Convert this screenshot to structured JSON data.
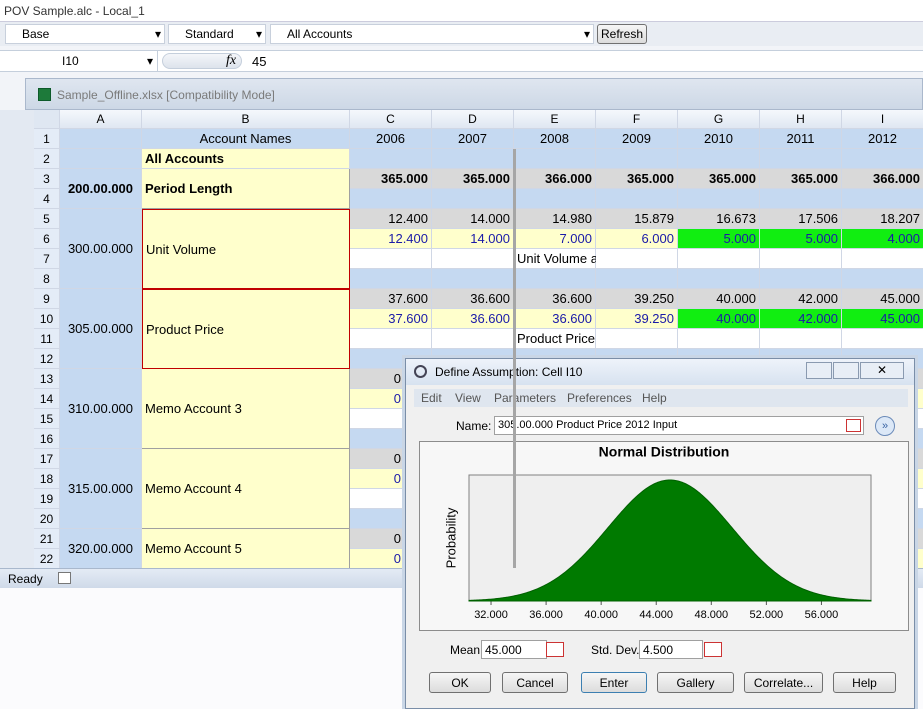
{
  "window_title": "POV Sample.alc - Local_1",
  "pov": {
    "members": [
      "Base",
      "Standard",
      "All Accounts"
    ],
    "refresh": "Refresh"
  },
  "formula_bar": {
    "cell": "I10",
    "fx": "fx",
    "value": "45"
  },
  "workbook": {
    "title": "Sample_Offline.xlsx  [Compatibility Mode]"
  },
  "sheet": {
    "columns": [
      "A",
      "B",
      "C",
      "D",
      "E",
      "F",
      "G",
      "H",
      "I"
    ],
    "row_numbers": [
      "1",
      "2",
      "3",
      "4",
      "5",
      "6",
      "7",
      "8",
      "9",
      "10",
      "11",
      "12",
      "13",
      "14",
      "15",
      "16",
      "17",
      "18",
      "19",
      "20",
      "21",
      "22"
    ],
    "rows": [
      [
        null,
        "Account Names",
        "2006",
        "2007",
        "2008",
        "2009",
        "2010",
        "2011",
        "2012"
      ],
      [
        null,
        "All Accounts",
        null,
        null,
        null,
        null,
        null,
        null,
        null
      ],
      [
        "200.00.000",
        "Period Length",
        "365.000",
        "365.000",
        "366.000",
        "365.000",
        "365.000",
        "365.000",
        "366.000"
      ],
      [
        null,
        null,
        null,
        null,
        null,
        null,
        null,
        null,
        null
      ],
      [
        "300.00.000",
        "Unit Volume",
        "12.400",
        "14.000",
        "14.980",
        "15.879",
        "16.673",
        "17.506",
        "18.207"
      ],
      [
        null,
        null,
        "12.400",
        "14.000",
        "7.000",
        "6.000",
        "5.000",
        "5.000",
        "4.000"
      ],
      [
        null,
        null,
        null,
        null,
        "Unit Volume as a Growth Rate",
        null,
        null,
        null,
        null
      ],
      [
        null,
        null,
        null,
        null,
        null,
        null,
        null,
        null,
        null
      ],
      [
        "305.00.000",
        "Product Price",
        "37.600",
        "36.600",
        "36.600",
        "39.250",
        "40.000",
        "42.000",
        "45.000"
      ],
      [
        null,
        null,
        "37.600",
        "36.600",
        "36.600",
        "39.250",
        "40.000",
        "42.000",
        "45.000"
      ],
      [
        null,
        null,
        null,
        null,
        "Product Price in Dollars",
        null,
        null,
        null,
        null
      ],
      [
        null,
        null,
        null,
        null,
        null,
        null,
        null,
        null,
        null
      ],
      [
        "310.00.000",
        "Memo Account 3",
        "0",
        null,
        null,
        null,
        null,
        null,
        null
      ],
      [
        null,
        null,
        "0",
        null,
        null,
        null,
        null,
        null,
        null
      ],
      [
        null,
        null,
        null,
        null,
        null,
        null,
        null,
        null,
        null
      ],
      [
        null,
        null,
        null,
        null,
        null,
        null,
        null,
        null,
        null
      ],
      [
        "315.00.000",
        "Memo Account 4",
        "0",
        null,
        null,
        null,
        null,
        null,
        null
      ],
      [
        null,
        null,
        "0",
        null,
        null,
        null,
        null,
        null,
        null
      ],
      [
        null,
        null,
        null,
        null,
        null,
        null,
        null,
        null,
        null
      ],
      [
        null,
        null,
        null,
        null,
        null,
        null,
        null,
        null,
        null
      ],
      [
        "320.00.000",
        "Memo Account 5",
        "0",
        null,
        null,
        null,
        null,
        null,
        null
      ],
      [
        null,
        null,
        "0",
        null,
        null,
        null,
        null,
        null,
        null
      ]
    ]
  },
  "status_bar": {
    "text": "Ready"
  },
  "dialog": {
    "title": "Define Assumption: Cell I10",
    "menu": [
      "Edit",
      "View",
      "Parameters",
      "Preferences",
      "Help"
    ],
    "name_label": "Name:",
    "name_value": "305.00.000 Product Price 2012 Input",
    "chart": {
      "title": "Normal Distribution",
      "y_label": "Probability",
      "xlim": [
        30.4,
        59.6
      ],
      "xticks": [
        {
          "value": 32,
          "label": "32.000"
        },
        {
          "value": 36,
          "label": "36.000"
        },
        {
          "value": 40,
          "label": "40.000"
        },
        {
          "value": 44,
          "label": "44.000"
        },
        {
          "value": 48,
          "label": "48.000"
        },
        {
          "value": 52,
          "label": "52.000"
        },
        {
          "value": 56,
          "label": "56.000"
        }
      ]
    },
    "mean": {
      "label": "Mean",
      "value": {
        "value": 45,
        "label": "45.000"
      }
    },
    "std_dev": {
      "label": "Std. Dev.",
      "value": {
        "value": 4.5,
        "label": "4.500"
      }
    },
    "buttons": [
      "OK",
      "Cancel",
      "Enter",
      "Gallery",
      "Correlate...",
      "Help"
    ]
  }
}
